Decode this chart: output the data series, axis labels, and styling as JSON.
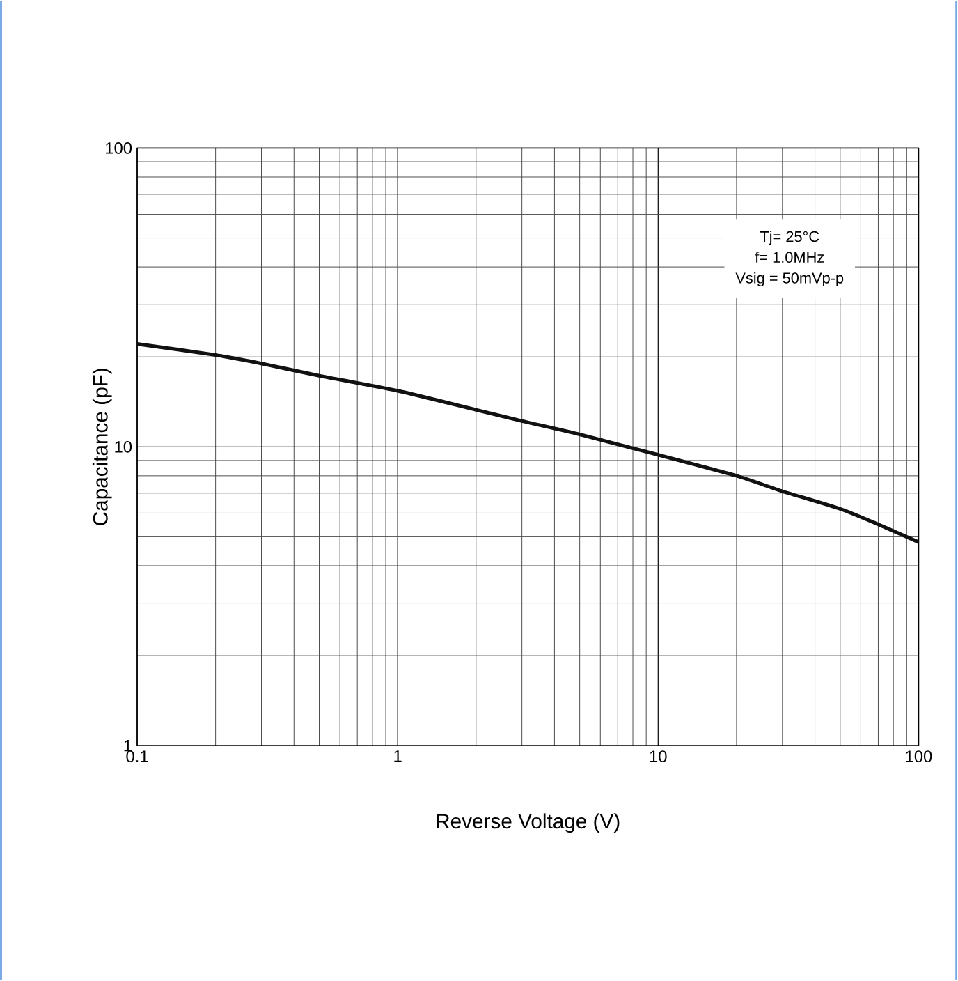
{
  "chart_data": {
    "type": "line",
    "xlabel": "Reverse Voltage (V)",
    "ylabel": "Capacitance (pF)",
    "annotations": [
      "Tj= 25°C",
      "f= 1.0MHz",
      "Vsig = 50mVp-p"
    ],
    "x": [
      0.1,
      0.2,
      0.3,
      0.5,
      1,
      2,
      3,
      5,
      10,
      20,
      30,
      50,
      70,
      100
    ],
    "series": [
      {
        "color": "#111111",
        "values": [
          22.1,
          20.3,
          19.0,
          17.3,
          15.4,
          13.3,
          12.2,
          11.0,
          9.4,
          8.0,
          7.1,
          6.2,
          5.5,
          4.8
        ]
      }
    ],
    "log": "xy",
    "xlim": [
      0.1,
      100
    ],
    "ylim": [
      1,
      100
    ],
    "xticks": [
      0.1,
      1,
      10,
      100
    ],
    "yticks": [
      1,
      10,
      100
    ],
    "grid": true,
    "marker": "none",
    "line_style": "solid"
  }
}
